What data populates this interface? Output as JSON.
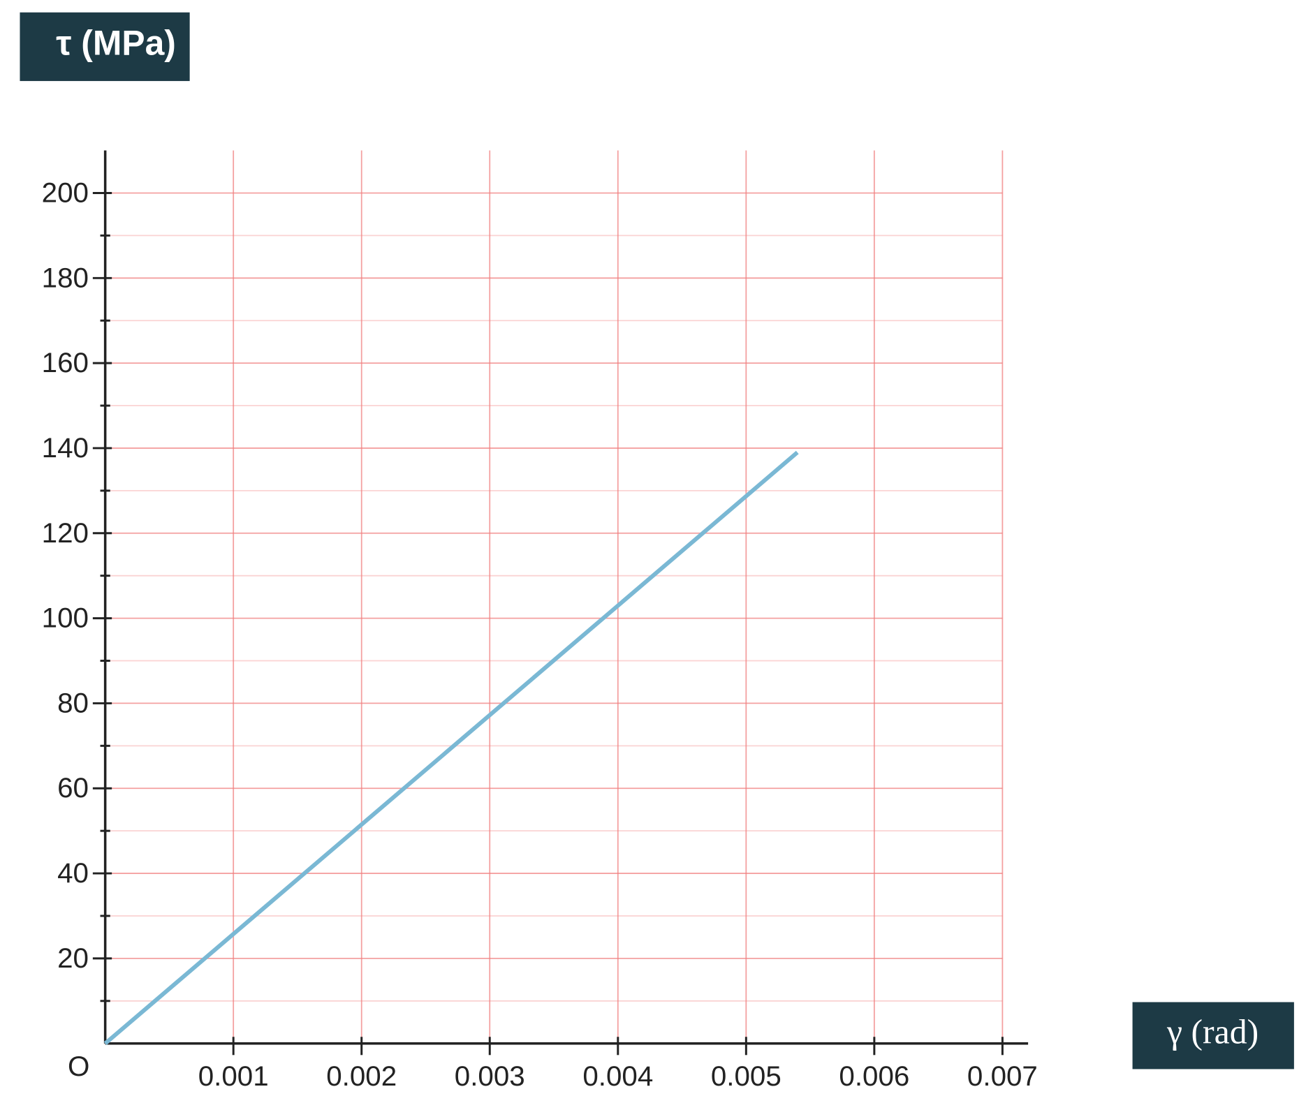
{
  "chart_data": {
    "type": "line",
    "y_axis_label": "τ (MPa)",
    "x_axis_label": "γ (rad)",
    "origin_label": "O",
    "x": [
      0,
      0.0054
    ],
    "series": [
      {
        "color": "#7ab8d4",
        "values": [
          0,
          139
        ]
      }
    ],
    "xlim": [
      0,
      0.0072
    ],
    "ylim": [
      0,
      210
    ],
    "xticks": [
      0.001,
      0.002,
      0.003,
      0.004,
      0.005,
      0.006,
      0.007
    ],
    "yticks": [
      20,
      40,
      60,
      80,
      100,
      120,
      140,
      160,
      180,
      200
    ],
    "y_minor_ticks": [
      10,
      30,
      50,
      70,
      90,
      110,
      130,
      150,
      170,
      190
    ],
    "grid": true,
    "grid_color": "#f08080",
    "label_box_color": "#1d3a45"
  }
}
